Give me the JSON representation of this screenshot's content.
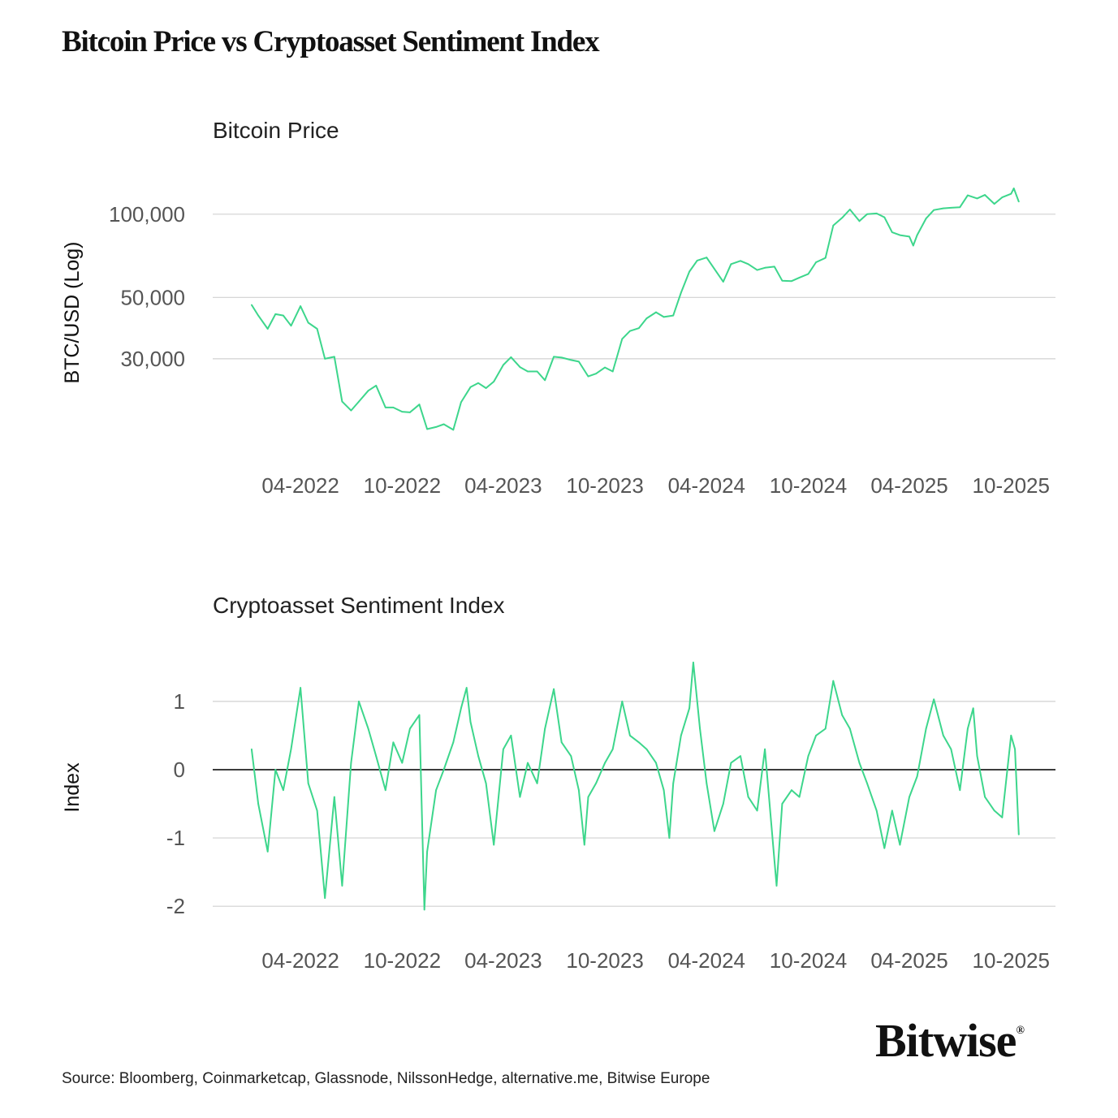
{
  "title": "Bitcoin Price vs Cryptoasset Sentiment Index",
  "source": "Source: Bloomberg, Coinmarketcap, Glassnode, NilssonHedge, alternative.me, Bitwise Europe",
  "logo": "Bitwise",
  "chart_data": [
    {
      "type": "line",
      "title": "Bitcoin Price",
      "ylabel": "BTC/USD (Log)",
      "xlabel": "",
      "yscale": "log",
      "ylim": [
        13500,
        130000
      ],
      "xlim": [
        "2021-10-25",
        "2025-12-20"
      ],
      "yticks": [
        {
          "value": 100000,
          "label": "100,000"
        },
        {
          "value": 50000,
          "label": "50,000"
        },
        {
          "value": 30000,
          "label": "30,000"
        }
      ],
      "xticks": [
        {
          "date": "2022-04-01",
          "label": "04-2022"
        },
        {
          "date": "2022-10-01",
          "label": "10-2022"
        },
        {
          "date": "2023-04-01",
          "label": "04-2023"
        },
        {
          "date": "2023-10-01",
          "label": "10-2023"
        },
        {
          "date": "2024-04-01",
          "label": "04-2024"
        },
        {
          "date": "2024-10-01",
          "label": "10-2024"
        },
        {
          "date": "2025-04-01",
          "label": "04-2025"
        },
        {
          "date": "2025-10-01",
          "label": "10-2025"
        }
      ],
      "grid": true,
      "color": "#3dd68c",
      "x": [
        "2022-01-03",
        "2022-01-15",
        "2022-02-01",
        "2022-02-15",
        "2022-03-01",
        "2022-03-15",
        "2022-04-01",
        "2022-04-15",
        "2022-05-01",
        "2022-05-15",
        "2022-06-01",
        "2022-06-15",
        "2022-07-01",
        "2022-07-15",
        "2022-08-01",
        "2022-08-15",
        "2022-09-01",
        "2022-09-15",
        "2022-10-01",
        "2022-10-15",
        "2022-11-01",
        "2022-11-15",
        "2022-12-01",
        "2022-12-15",
        "2023-01-01",
        "2023-01-15",
        "2023-02-01",
        "2023-02-15",
        "2023-03-01",
        "2023-03-15",
        "2023-04-01",
        "2023-04-15",
        "2023-05-01",
        "2023-05-15",
        "2023-06-01",
        "2023-06-15",
        "2023-07-01",
        "2023-07-15",
        "2023-08-01",
        "2023-08-15",
        "2023-09-01",
        "2023-09-15",
        "2023-10-01",
        "2023-10-15",
        "2023-11-01",
        "2023-11-15",
        "2023-12-01",
        "2023-12-15",
        "2024-01-01",
        "2024-01-15",
        "2024-02-01",
        "2024-02-15",
        "2024-03-01",
        "2024-03-15",
        "2024-04-01",
        "2024-04-15",
        "2024-05-01",
        "2024-05-15",
        "2024-06-01",
        "2024-06-15",
        "2024-07-01",
        "2024-07-15",
        "2024-08-01",
        "2024-08-15",
        "2024-09-01",
        "2024-09-15",
        "2024-10-01",
        "2024-10-15",
        "2024-11-01",
        "2024-11-15",
        "2024-12-01",
        "2024-12-15",
        "2025-01-01",
        "2025-01-15",
        "2025-02-01",
        "2025-02-15",
        "2025-03-01",
        "2025-03-15",
        "2025-04-01",
        "2025-04-08",
        "2025-04-15",
        "2025-05-01",
        "2025-05-15",
        "2025-06-01",
        "2025-06-15",
        "2025-07-01",
        "2025-07-15",
        "2025-08-01",
        "2025-08-15",
        "2025-09-01",
        "2025-09-15",
        "2025-10-01",
        "2025-10-06",
        "2025-10-15"
      ],
      "values": [
        47000,
        43000,
        38500,
        43500,
        43000,
        39500,
        46500,
        40500,
        38500,
        30000,
        30500,
        21000,
        19500,
        21000,
        23000,
        24000,
        20000,
        20000,
        19300,
        19200,
        20500,
        16700,
        17000,
        17400,
        16600,
        20900,
        23700,
        24500,
        23500,
        24800,
        28500,
        30400,
        28000,
        27000,
        27000,
        25100,
        30500,
        30300,
        29700,
        29300,
        25900,
        26500,
        27900,
        27000,
        35400,
        37800,
        38700,
        42000,
        44200,
        42500,
        43000,
        52000,
        62000,
        68000,
        69700,
        63400,
        57000,
        66000,
        67800,
        66000,
        62800,
        64000,
        64600,
        57500,
        57300,
        59000,
        60800,
        67000,
        69500,
        91000,
        97000,
        104000,
        94400,
        100000,
        100600,
        97500,
        86000,
        84000,
        83000,
        77000,
        84000,
        96500,
        103500,
        105000,
        105500,
        106000,
        117000,
        114000,
        117400,
        109000,
        115000,
        118500,
        124000,
        111000
      ]
    },
    {
      "type": "line",
      "title": "Cryptoasset Sentiment Index",
      "ylabel": "Index",
      "xlabel": "",
      "ylim": [
        -2.2,
        1.7
      ],
      "xlim": [
        "2021-10-25",
        "2025-12-20"
      ],
      "yticks": [
        {
          "value": 1,
          "label": "1"
        },
        {
          "value": 0,
          "label": "0"
        },
        {
          "value": -1,
          "label": "-1"
        },
        {
          "value": -2,
          "label": "-2"
        }
      ],
      "xticks": [
        {
          "date": "2022-04-01",
          "label": "04-2022"
        },
        {
          "date": "2022-10-01",
          "label": "10-2022"
        },
        {
          "date": "2023-04-01",
          "label": "04-2023"
        },
        {
          "date": "2023-10-01",
          "label": "10-2023"
        },
        {
          "date": "2024-04-01",
          "label": "04-2024"
        },
        {
          "date": "2024-10-01",
          "label": "10-2024"
        },
        {
          "date": "2025-04-01",
          "label": "04-2025"
        },
        {
          "date": "2025-10-01",
          "label": "10-2025"
        }
      ],
      "grid": true,
      "zero_line": true,
      "color": "#3dd68c",
      "x": [
        "2022-01-03",
        "2022-01-15",
        "2022-02-01",
        "2022-02-15",
        "2022-03-01",
        "2022-03-15",
        "2022-04-01",
        "2022-04-15",
        "2022-05-01",
        "2022-05-15",
        "2022-06-01",
        "2022-06-15",
        "2022-07-01",
        "2022-07-15",
        "2022-08-01",
        "2022-08-15",
        "2022-09-01",
        "2022-09-15",
        "2022-10-01",
        "2022-10-15",
        "2022-11-01",
        "2022-11-10",
        "2022-11-15",
        "2022-12-01",
        "2022-12-15",
        "2023-01-01",
        "2023-01-15",
        "2023-01-25",
        "2023-02-01",
        "2023-02-15",
        "2023-03-01",
        "2023-03-15",
        "2023-04-01",
        "2023-04-15",
        "2023-05-01",
        "2023-05-15",
        "2023-06-01",
        "2023-06-15",
        "2023-07-01",
        "2023-07-15",
        "2023-08-01",
        "2023-08-15",
        "2023-08-25",
        "2023-09-01",
        "2023-09-15",
        "2023-10-01",
        "2023-10-15",
        "2023-11-01",
        "2023-11-15",
        "2023-12-01",
        "2023-12-15",
        "2024-01-01",
        "2024-01-15",
        "2024-01-25",
        "2024-02-01",
        "2024-02-15",
        "2024-03-01",
        "2024-03-08",
        "2024-03-20",
        "2024-04-01",
        "2024-04-15",
        "2024-05-01",
        "2024-05-15",
        "2024-06-01",
        "2024-06-15",
        "2024-07-01",
        "2024-07-15",
        "2024-08-05",
        "2024-08-15",
        "2024-09-01",
        "2024-09-15",
        "2024-10-01",
        "2024-10-15",
        "2024-11-01",
        "2024-11-15",
        "2024-12-01",
        "2024-12-15",
        "2025-01-01",
        "2025-01-15",
        "2025-02-01",
        "2025-02-15",
        "2025-03-01",
        "2025-03-15",
        "2025-04-01",
        "2025-04-15",
        "2025-05-01",
        "2025-05-15",
        "2025-06-01",
        "2025-06-15",
        "2025-07-01",
        "2025-07-15",
        "2025-07-25",
        "2025-08-01",
        "2025-08-15",
        "2025-09-01",
        "2025-09-15",
        "2025-10-01",
        "2025-10-08",
        "2025-10-15"
      ],
      "values": [
        0.3,
        -0.5,
        -1.2,
        0.0,
        -0.3,
        0.3,
        1.2,
        -0.2,
        -0.6,
        -1.88,
        -0.4,
        -1.7,
        0.1,
        1.0,
        0.6,
        0.2,
        -0.3,
        0.4,
        0.1,
        0.6,
        0.8,
        -2.05,
        -1.2,
        -0.3,
        0.0,
        0.4,
        0.9,
        1.2,
        0.7,
        0.2,
        -0.2,
        -1.1,
        0.3,
        0.5,
        -0.4,
        0.1,
        -0.2,
        0.6,
        1.18,
        0.4,
        0.2,
        -0.3,
        -1.1,
        -0.4,
        -0.2,
        0.1,
        0.3,
        1.0,
        0.5,
        0.4,
        0.3,
        0.1,
        -0.3,
        -1.0,
        -0.2,
        0.5,
        0.9,
        1.57,
        0.6,
        -0.2,
        -0.9,
        -0.5,
        0.1,
        0.2,
        -0.4,
        -0.6,
        0.3,
        -1.7,
        -0.5,
        -0.3,
        -0.4,
        0.2,
        0.5,
        0.6,
        1.3,
        0.8,
        0.6,
        0.1,
        -0.2,
        -0.6,
        -1.15,
        -0.6,
        -1.1,
        -0.4,
        -0.1,
        0.6,
        1.03,
        0.5,
        0.3,
        -0.3,
        0.6,
        0.9,
        0.2,
        -0.4,
        -0.6,
        -0.7,
        0.5,
        0.3,
        -0.95
      ]
    }
  ]
}
